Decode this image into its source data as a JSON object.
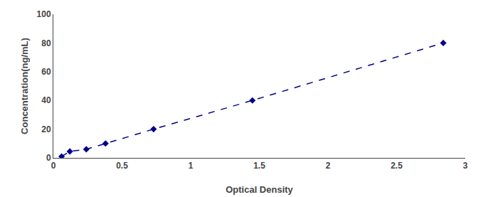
{
  "chart_data": {
    "type": "line",
    "x": [
      0.06,
      0.12,
      0.24,
      0.38,
      0.73,
      1.45,
      2.84
    ],
    "values": [
      1.0,
      4.5,
      6.0,
      10.0,
      20.0,
      40.0,
      80.0
    ],
    "color": "#00008B",
    "marker": "diamond",
    "line_style": "dashed",
    "xlabel": "Optical Density",
    "ylabel": "Concentration(ng/mL)",
    "xlim": [
      0,
      3.0
    ],
    "ylim": [
      0,
      100
    ],
    "xticks": [
      0,
      0.5,
      1,
      1.5,
      2,
      2.5,
      3
    ],
    "yticks": [
      0,
      20,
      40,
      60,
      80,
      100
    ],
    "grid": false
  }
}
